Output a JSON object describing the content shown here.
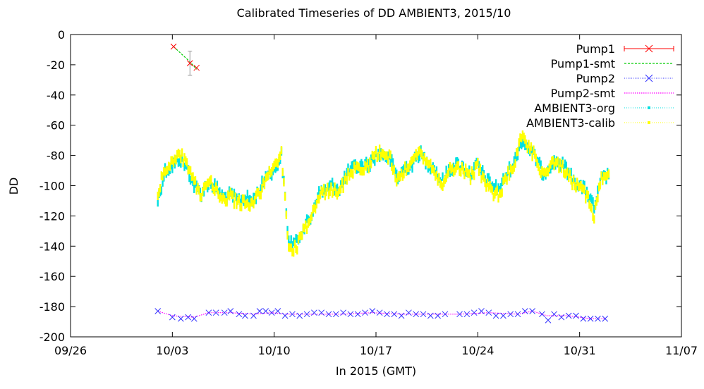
{
  "chart_data": {
    "type": "line",
    "title": "Calibrated Timeseries of DD AMBIENT3, 2015/10",
    "xlabel": "In 2015 (GMT)",
    "ylabel": "DD",
    "xlim": [
      "2015-09-26",
      "2015-11-07"
    ],
    "ylim": [
      -200,
      0
    ],
    "x_ticks": [
      {
        "date": "2015-09-26",
        "label": "09/26"
      },
      {
        "date": "2015-10-03",
        "label": "10/03"
      },
      {
        "date": "2015-10-10",
        "label": "10/10"
      },
      {
        "date": "2015-10-17",
        "label": "10/17"
      },
      {
        "date": "2015-10-24",
        "label": "10/24"
      },
      {
        "date": "2015-10-31",
        "label": "10/31"
      },
      {
        "date": "2015-11-07",
        "label": "11/07"
      }
    ],
    "y_ticks": [
      0,
      -20,
      -40,
      -60,
      -80,
      -100,
      -120,
      -140,
      -160,
      -180,
      -200
    ],
    "legend_position": "top-right",
    "grid": false,
    "series": [
      {
        "name": "Pump1",
        "color": "#ff0000",
        "marker": "x-errorbar",
        "points": [
          {
            "x": "2015-10-03T02:00",
            "y": -8
          },
          {
            "x": "2015-10-04T05:00",
            "y": -19,
            "err": 8
          },
          {
            "x": "2015-10-04T16:00",
            "y": -22
          }
        ]
      },
      {
        "name": "Pump1-smt",
        "color": "#00cc00",
        "marker": "dashed-line",
        "points": [
          {
            "x": "2015-10-03T02:00",
            "y": -8
          },
          {
            "x": "2015-10-04T05:00",
            "y": -18
          },
          {
            "x": "2015-10-04T16:00",
            "y": -23
          }
        ]
      },
      {
        "name": "Pump2",
        "color": "#3333ff",
        "marker": "x",
        "points": [
          {
            "x": "2015-10-02T00:00",
            "y": -183
          },
          {
            "x": "2015-10-03T00:00",
            "y": -187
          },
          {
            "x": "2015-10-03T14:00",
            "y": -188
          },
          {
            "x": "2015-10-04T02:00",
            "y": -187
          },
          {
            "x": "2015-10-04T12:00",
            "y": -188
          },
          {
            "x": "2015-10-05T12:00",
            "y": -184
          },
          {
            "x": "2015-10-06T00:00",
            "y": -184
          },
          {
            "x": "2015-10-06T14:00",
            "y": -184
          },
          {
            "x": "2015-10-07T00:00",
            "y": -183
          },
          {
            "x": "2015-10-07T14:00",
            "y": -185
          },
          {
            "x": "2015-10-08T00:00",
            "y": -186
          },
          {
            "x": "2015-10-08T14:00",
            "y": -186
          },
          {
            "x": "2015-10-09T00:00",
            "y": -183
          },
          {
            "x": "2015-10-09T10:00",
            "y": -183
          },
          {
            "x": "2015-10-09T20:00",
            "y": -184
          },
          {
            "x": "2015-10-10T06:00",
            "y": -183
          },
          {
            "x": "2015-10-10T18:00",
            "y": -186
          },
          {
            "x": "2015-10-11T06:00",
            "y": -185
          },
          {
            "x": "2015-10-11T18:00",
            "y": -186
          },
          {
            "x": "2015-10-12T06:00",
            "y": -185
          },
          {
            "x": "2015-10-12T18:00",
            "y": -184
          },
          {
            "x": "2015-10-13T06:00",
            "y": -184
          },
          {
            "x": "2015-10-13T18:00",
            "y": -185
          },
          {
            "x": "2015-10-14T06:00",
            "y": -185
          },
          {
            "x": "2015-10-14T18:00",
            "y": -184
          },
          {
            "x": "2015-10-15T06:00",
            "y": -185
          },
          {
            "x": "2015-10-15T18:00",
            "y": -185
          },
          {
            "x": "2015-10-16T06:00",
            "y": -184
          },
          {
            "x": "2015-10-16T18:00",
            "y": -183
          },
          {
            "x": "2015-10-17T06:00",
            "y": -184
          },
          {
            "x": "2015-10-17T18:00",
            "y": -185
          },
          {
            "x": "2015-10-18T06:00",
            "y": -185
          },
          {
            "x": "2015-10-18T18:00",
            "y": -186
          },
          {
            "x": "2015-10-19T06:00",
            "y": -184
          },
          {
            "x": "2015-10-19T18:00",
            "y": -185
          },
          {
            "x": "2015-10-20T06:00",
            "y": -185
          },
          {
            "x": "2015-10-20T18:00",
            "y": -186
          },
          {
            "x": "2015-10-21T06:00",
            "y": -186
          },
          {
            "x": "2015-10-21T18:00",
            "y": -185
          },
          {
            "x": "2015-10-22T18:00",
            "y": -185
          },
          {
            "x": "2015-10-23T06:00",
            "y": -185
          },
          {
            "x": "2015-10-23T18:00",
            "y": -184
          },
          {
            "x": "2015-10-24T06:00",
            "y": -183
          },
          {
            "x": "2015-10-24T18:00",
            "y": -184
          },
          {
            "x": "2015-10-25T06:00",
            "y": -186
          },
          {
            "x": "2015-10-25T18:00",
            "y": -186
          },
          {
            "x": "2015-10-26T06:00",
            "y": -185
          },
          {
            "x": "2015-10-26T18:00",
            "y": -185
          },
          {
            "x": "2015-10-27T06:00",
            "y": -183
          },
          {
            "x": "2015-10-27T18:00",
            "y": -183
          },
          {
            "x": "2015-10-28T10:00",
            "y": -185
          },
          {
            "x": "2015-10-28T20:00",
            "y": -189
          },
          {
            "x": "2015-10-29T06:00",
            "y": -185
          },
          {
            "x": "2015-10-29T18:00",
            "y": -187
          },
          {
            "x": "2015-10-30T06:00",
            "y": -186
          },
          {
            "x": "2015-10-30T18:00",
            "y": -186
          },
          {
            "x": "2015-10-31T06:00",
            "y": -188
          },
          {
            "x": "2015-10-31T18:00",
            "y": -188
          },
          {
            "x": "2015-11-01T06:00",
            "y": -188
          },
          {
            "x": "2015-11-01T18:00",
            "y": -188
          }
        ]
      },
      {
        "name": "Pump2-smt",
        "color": "#ff00ff",
        "marker": "dotted-line",
        "points": [
          {
            "x": "2015-10-02T00:00",
            "y": -183
          },
          {
            "x": "2015-10-03T00:00",
            "y": -186
          },
          {
            "x": "2015-10-04T12:00",
            "y": -187
          },
          {
            "x": "2015-10-05T12:00",
            "y": -184
          },
          {
            "x": "2015-10-07T00:00",
            "y": -184
          },
          {
            "x": "2015-10-08T14:00",
            "y": -185
          },
          {
            "x": "2015-10-09T20:00",
            "y": -184
          },
          {
            "x": "2015-10-10T18:00",
            "y": -185
          },
          {
            "x": "2015-10-12T18:00",
            "y": -185
          },
          {
            "x": "2015-10-14T18:00",
            "y": -185
          },
          {
            "x": "2015-10-16T18:00",
            "y": -184
          },
          {
            "x": "2015-10-18T18:00",
            "y": -185
          },
          {
            "x": "2015-10-20T18:00",
            "y": -185
          },
          {
            "x": "2015-10-22T18:00",
            "y": -185
          },
          {
            "x": "2015-10-24T18:00",
            "y": -184
          },
          {
            "x": "2015-10-26T18:00",
            "y": -185
          },
          {
            "x": "2015-10-27T18:00",
            "y": -183
          },
          {
            "x": "2015-10-28T18:00",
            "y": -186
          },
          {
            "x": "2015-10-30T06:00",
            "y": -186
          },
          {
            "x": "2015-10-31T18:00",
            "y": -188
          },
          {
            "x": "2015-11-01T18:00",
            "y": -188
          }
        ]
      },
      {
        "name": "AMBIENT3-org",
        "color": "#00e0e0",
        "marker": "dense-points",
        "points": [
          {
            "x": "2015-10-02T00:00",
            "y": -110
          },
          {
            "x": "2015-10-02T12:00",
            "y": -90
          },
          {
            "x": "2015-10-03T00:00",
            "y": -87
          },
          {
            "x": "2015-10-03T12:00",
            "y": -82
          },
          {
            "x": "2015-10-04T00:00",
            "y": -88
          },
          {
            "x": "2015-10-04T12:00",
            "y": -100
          },
          {
            "x": "2015-10-05T00:00",
            "y": -105
          },
          {
            "x": "2015-10-05T12:00",
            "y": -98
          },
          {
            "x": "2015-10-06T00:00",
            "y": -101
          },
          {
            "x": "2015-10-06T12:00",
            "y": -108
          },
          {
            "x": "2015-10-07T00:00",
            "y": -106
          },
          {
            "x": "2015-10-07T12:00",
            "y": -110
          },
          {
            "x": "2015-10-08T00:00",
            "y": -108
          },
          {
            "x": "2015-10-08T12:00",
            "y": -110
          },
          {
            "x": "2015-10-09T00:00",
            "y": -103
          },
          {
            "x": "2015-10-09T12:00",
            "y": -92
          },
          {
            "x": "2015-10-10T00:00",
            "y": -90
          },
          {
            "x": "2015-10-10T12:00",
            "y": -80
          },
          {
            "x": "2015-10-11T00:00",
            "y": -137
          },
          {
            "x": "2015-10-11T12:00",
            "y": -138
          },
          {
            "x": "2015-10-12T00:00",
            "y": -128
          },
          {
            "x": "2015-10-12T12:00",
            "y": -122
          },
          {
            "x": "2015-10-13T00:00",
            "y": -106
          },
          {
            "x": "2015-10-13T12:00",
            "y": -103
          },
          {
            "x": "2015-10-14T00:00",
            "y": -100
          },
          {
            "x": "2015-10-14T12:00",
            "y": -102
          },
          {
            "x": "2015-10-15T00:00",
            "y": -92
          },
          {
            "x": "2015-10-15T12:00",
            "y": -88
          },
          {
            "x": "2015-10-16T00:00",
            "y": -87
          },
          {
            "x": "2015-10-16T12:00",
            "y": -86
          },
          {
            "x": "2015-10-17T00:00",
            "y": -80
          },
          {
            "x": "2015-10-17T12:00",
            "y": -79
          },
          {
            "x": "2015-10-18T00:00",
            "y": -83
          },
          {
            "x": "2015-10-18T12:00",
            "y": -95
          },
          {
            "x": "2015-10-19T00:00",
            "y": -88
          },
          {
            "x": "2015-10-19T12:00",
            "y": -86
          },
          {
            "x": "2015-10-20T00:00",
            "y": -78
          },
          {
            "x": "2015-10-20T12:00",
            "y": -85
          },
          {
            "x": "2015-10-21T00:00",
            "y": -88
          },
          {
            "x": "2015-10-21T12:00",
            "y": -98
          },
          {
            "x": "2015-10-22T00:00",
            "y": -90
          },
          {
            "x": "2015-10-22T12:00",
            "y": -86
          },
          {
            "x": "2015-10-23T00:00",
            "y": -88
          },
          {
            "x": "2015-10-23T12:00",
            "y": -92
          },
          {
            "x": "2015-10-24T00:00",
            "y": -86
          },
          {
            "x": "2015-10-24T12:00",
            "y": -95
          },
          {
            "x": "2015-10-25T00:00",
            "y": -100
          },
          {
            "x": "2015-10-25T12:00",
            "y": -102
          },
          {
            "x": "2015-10-26T00:00",
            "y": -92
          },
          {
            "x": "2015-10-26T12:00",
            "y": -85
          },
          {
            "x": "2015-10-27T00:00",
            "y": -70
          },
          {
            "x": "2015-10-27T12:00",
            "y": -75
          },
          {
            "x": "2015-10-28T00:00",
            "y": -82
          },
          {
            "x": "2015-10-28T12:00",
            "y": -92
          },
          {
            "x": "2015-10-29T00:00",
            "y": -86
          },
          {
            "x": "2015-10-29T12:00",
            "y": -84
          },
          {
            "x": "2015-10-30T00:00",
            "y": -88
          },
          {
            "x": "2015-10-30T12:00",
            "y": -95
          },
          {
            "x": "2015-10-31T00:00",
            "y": -100
          },
          {
            "x": "2015-10-31T12:00",
            "y": -104
          },
          {
            "x": "2015-11-01T00:00",
            "y": -115
          },
          {
            "x": "2015-11-01T12:00",
            "y": -96
          },
          {
            "x": "2015-11-02T00:00",
            "y": -93
          }
        ]
      },
      {
        "name": "AMBIENT3-calib",
        "color": "#ffff00",
        "marker": "dense-points",
        "points": [
          {
            "x": "2015-10-02T00:00",
            "y": -105
          },
          {
            "x": "2015-10-02T12:00",
            "y": -88
          },
          {
            "x": "2015-10-03T00:00",
            "y": -84
          },
          {
            "x": "2015-10-03T12:00",
            "y": -78
          },
          {
            "x": "2015-10-04T00:00",
            "y": -86
          },
          {
            "x": "2015-10-04T12:00",
            "y": -98
          },
          {
            "x": "2015-10-05T00:00",
            "y": -106
          },
          {
            "x": "2015-10-05T12:00",
            "y": -97
          },
          {
            "x": "2015-10-06T00:00",
            "y": -103
          },
          {
            "x": "2015-10-06T12:00",
            "y": -110
          },
          {
            "x": "2015-10-07T00:00",
            "y": -107
          },
          {
            "x": "2015-10-07T12:00",
            "y": -112
          },
          {
            "x": "2015-10-08T00:00",
            "y": -110
          },
          {
            "x": "2015-10-08T12:00",
            "y": -112
          },
          {
            "x": "2015-10-09T00:00",
            "y": -105
          },
          {
            "x": "2015-10-09T12:00",
            "y": -94
          },
          {
            "x": "2015-10-10T00:00",
            "y": -88
          },
          {
            "x": "2015-10-10T12:00",
            "y": -78
          },
          {
            "x": "2015-10-11T00:00",
            "y": -140
          },
          {
            "x": "2015-10-11T12:00",
            "y": -142
          },
          {
            "x": "2015-10-12T00:00",
            "y": -130
          },
          {
            "x": "2015-10-12T12:00",
            "y": -124
          },
          {
            "x": "2015-10-13T00:00",
            "y": -108
          },
          {
            "x": "2015-10-13T12:00",
            "y": -104
          },
          {
            "x": "2015-10-14T00:00",
            "y": -102
          },
          {
            "x": "2015-10-14T12:00",
            "y": -104
          },
          {
            "x": "2015-10-15T00:00",
            "y": -94
          },
          {
            "x": "2015-10-15T12:00",
            "y": -89
          },
          {
            "x": "2015-10-16T00:00",
            "y": -88
          },
          {
            "x": "2015-10-16T12:00",
            "y": -86
          },
          {
            "x": "2015-10-17T00:00",
            "y": -79
          },
          {
            "x": "2015-10-17T12:00",
            "y": -78
          },
          {
            "x": "2015-10-18T00:00",
            "y": -82
          },
          {
            "x": "2015-10-18T12:00",
            "y": -97
          },
          {
            "x": "2015-10-19T00:00",
            "y": -89
          },
          {
            "x": "2015-10-19T12:00",
            "y": -86
          },
          {
            "x": "2015-10-20T00:00",
            "y": -77
          },
          {
            "x": "2015-10-20T12:00",
            "y": -84
          },
          {
            "x": "2015-10-21T00:00",
            "y": -89
          },
          {
            "x": "2015-10-21T12:00",
            "y": -100
          },
          {
            "x": "2015-10-22T00:00",
            "y": -91
          },
          {
            "x": "2015-10-22T12:00",
            "y": -87
          },
          {
            "x": "2015-10-23T00:00",
            "y": -90
          },
          {
            "x": "2015-10-23T12:00",
            "y": -94
          },
          {
            "x": "2015-10-24T00:00",
            "y": -87
          },
          {
            "x": "2015-10-24T12:00",
            "y": -98
          },
          {
            "x": "2015-10-25T00:00",
            "y": -104
          },
          {
            "x": "2015-10-25T12:00",
            "y": -106
          },
          {
            "x": "2015-10-26T00:00",
            "y": -94
          },
          {
            "x": "2015-10-26T12:00",
            "y": -86
          },
          {
            "x": "2015-10-27T00:00",
            "y": -68
          },
          {
            "x": "2015-10-27T12:00",
            "y": -74
          },
          {
            "x": "2015-10-28T00:00",
            "y": -82
          },
          {
            "x": "2015-10-28T12:00",
            "y": -93
          },
          {
            "x": "2015-10-29T00:00",
            "y": -87
          },
          {
            "x": "2015-10-29T12:00",
            "y": -85
          },
          {
            "x": "2015-10-30T00:00",
            "y": -90
          },
          {
            "x": "2015-10-30T12:00",
            "y": -97
          },
          {
            "x": "2015-10-31T00:00",
            "y": -102
          },
          {
            "x": "2015-10-31T12:00",
            "y": -107
          },
          {
            "x": "2015-11-01T00:00",
            "y": -120
          },
          {
            "x": "2015-11-01T12:00",
            "y": -95
          },
          {
            "x": "2015-11-02T00:00",
            "y": -92
          }
        ]
      }
    ]
  }
}
